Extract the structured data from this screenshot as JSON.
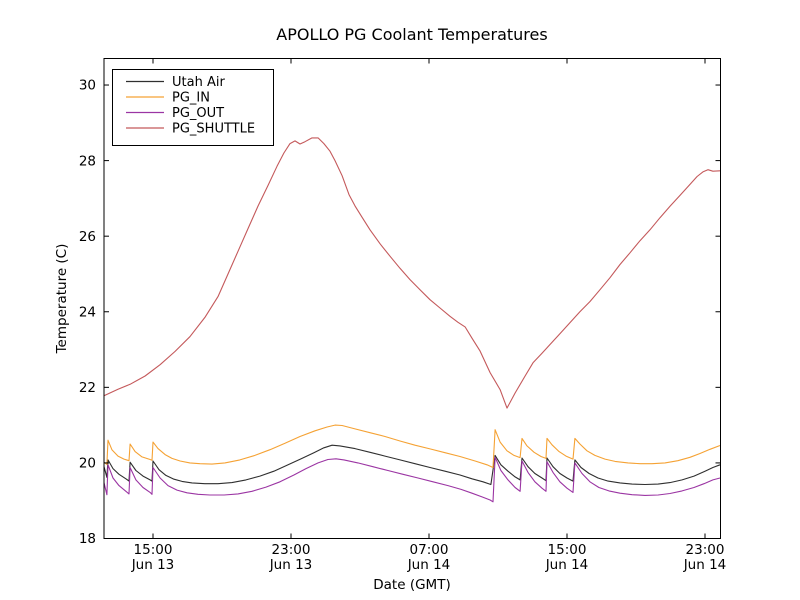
{
  "figure": {
    "title": "APOLLO PG Coolant Temperatures",
    "xlabel": "Date (GMT)",
    "ylabel": "Temperature (C)"
  },
  "chart_data": {
    "type": "line",
    "title": "APOLLO PG Coolant Temperatures",
    "xlabel": "Date (GMT)",
    "ylabel": "Temperature (C)",
    "x_unit": "hours since Jun 13 00:00 GMT",
    "xlim": [
      12.16,
      47.87
    ],
    "ylim": [
      18,
      30.7
    ],
    "grid": false,
    "legend_position": "upper left",
    "y_ticks": [
      {
        "value": 18,
        "label": "18"
      },
      {
        "value": 20,
        "label": "20"
      },
      {
        "value": 22,
        "label": "22"
      },
      {
        "value": 24,
        "label": "24"
      },
      {
        "value": 26,
        "label": "26"
      },
      {
        "value": 28,
        "label": "28"
      },
      {
        "value": 30,
        "label": "30"
      }
    ],
    "x_ticks": [
      {
        "t": 15,
        "time": "15:00",
        "date": "Jun 13"
      },
      {
        "t": 23,
        "time": "23:00",
        "date": "Jun 13"
      },
      {
        "t": 31,
        "time": "07:00",
        "date": "Jun 14"
      },
      {
        "t": 39,
        "time": "15:00",
        "date": "Jun 14"
      },
      {
        "t": 47,
        "time": "23:00",
        "date": "Jun 14"
      }
    ],
    "series": [
      {
        "name": "Utah Air",
        "color": "#2F2F2F",
        "points": [
          [
            12.16,
            19.9
          ],
          [
            12.33,
            19.62
          ],
          [
            12.39,
            20.08
          ],
          [
            12.68,
            19.85
          ],
          [
            13.03,
            19.7
          ],
          [
            13.43,
            19.58
          ],
          [
            13.61,
            19.52
          ],
          [
            13.67,
            20.02
          ],
          [
            14.01,
            19.8
          ],
          [
            14.42,
            19.65
          ],
          [
            14.83,
            19.55
          ],
          [
            14.94,
            19.52
          ],
          [
            15.0,
            20.05
          ],
          [
            15.35,
            19.82
          ],
          [
            15.75,
            19.67
          ],
          [
            16.22,
            19.57
          ],
          [
            16.68,
            19.51
          ],
          [
            17.26,
            19.47
          ],
          [
            18.01,
            19.45
          ],
          [
            18.77,
            19.45
          ],
          [
            19.58,
            19.48
          ],
          [
            20.39,
            19.55
          ],
          [
            21.2,
            19.65
          ],
          [
            22.01,
            19.78
          ],
          [
            22.83,
            19.95
          ],
          [
            23.64,
            20.12
          ],
          [
            24.33,
            20.27
          ],
          [
            24.91,
            20.4
          ],
          [
            25.38,
            20.47
          ],
          [
            25.84,
            20.45
          ],
          [
            26.71,
            20.38
          ],
          [
            27.58,
            20.28
          ],
          [
            28.45,
            20.18
          ],
          [
            29.32,
            20.08
          ],
          [
            30.19,
            19.98
          ],
          [
            31.06,
            19.88
          ],
          [
            31.93,
            19.78
          ],
          [
            32.8,
            19.68
          ],
          [
            33.49,
            19.58
          ],
          [
            34.13,
            19.5
          ],
          [
            34.59,
            19.43
          ],
          [
            34.83,
            20.2
          ],
          [
            35.17,
            19.95
          ],
          [
            35.58,
            19.78
          ],
          [
            35.99,
            19.63
          ],
          [
            36.28,
            19.55
          ],
          [
            36.39,
            20.13
          ],
          [
            36.74,
            19.9
          ],
          [
            37.14,
            19.72
          ],
          [
            37.55,
            19.6
          ],
          [
            37.78,
            19.53
          ],
          [
            37.84,
            20.13
          ],
          [
            38.19,
            19.9
          ],
          [
            38.59,
            19.72
          ],
          [
            39.0,
            19.6
          ],
          [
            39.35,
            19.52
          ],
          [
            39.46,
            20.08
          ],
          [
            39.81,
            19.88
          ],
          [
            40.28,
            19.72
          ],
          [
            40.8,
            19.6
          ],
          [
            41.38,
            19.52
          ],
          [
            42.07,
            19.47
          ],
          [
            42.77,
            19.44
          ],
          [
            43.52,
            19.43
          ],
          [
            44.28,
            19.44
          ],
          [
            44.97,
            19.48
          ],
          [
            45.67,
            19.55
          ],
          [
            46.36,
            19.65
          ],
          [
            47.0,
            19.78
          ],
          [
            47.46,
            19.88
          ],
          [
            47.87,
            19.95
          ]
        ]
      },
      {
        "name": "PG_IN",
        "color": "#F5A234",
        "points": [
          [
            12.16,
            20.02
          ],
          [
            12.33,
            19.96
          ],
          [
            12.39,
            20.6
          ],
          [
            12.62,
            20.35
          ],
          [
            12.97,
            20.18
          ],
          [
            13.32,
            20.1
          ],
          [
            13.61,
            20.06
          ],
          [
            13.67,
            20.5
          ],
          [
            13.96,
            20.3
          ],
          [
            14.36,
            20.16
          ],
          [
            14.83,
            20.09
          ],
          [
            14.94,
            20.07
          ],
          [
            15.0,
            20.55
          ],
          [
            15.29,
            20.38
          ],
          [
            15.7,
            20.22
          ],
          [
            16.1,
            20.12
          ],
          [
            16.57,
            20.05
          ],
          [
            17.14,
            20.0
          ],
          [
            17.72,
            19.98
          ],
          [
            18.42,
            19.97
          ],
          [
            19.17,
            20.0
          ],
          [
            20.04,
            20.08
          ],
          [
            20.91,
            20.2
          ],
          [
            21.78,
            20.35
          ],
          [
            22.65,
            20.52
          ],
          [
            23.52,
            20.7
          ],
          [
            24.39,
            20.85
          ],
          [
            25.09,
            20.95
          ],
          [
            25.55,
            21.0
          ],
          [
            25.96,
            20.99
          ],
          [
            26.71,
            20.9
          ],
          [
            27.58,
            20.8
          ],
          [
            28.45,
            20.7
          ],
          [
            29.32,
            20.58
          ],
          [
            30.19,
            20.47
          ],
          [
            31.06,
            20.37
          ],
          [
            31.93,
            20.27
          ],
          [
            32.8,
            20.17
          ],
          [
            33.67,
            20.05
          ],
          [
            34.36,
            19.95
          ],
          [
            34.71,
            19.88
          ],
          [
            34.83,
            20.88
          ],
          [
            35.12,
            20.55
          ],
          [
            35.52,
            20.32
          ],
          [
            35.93,
            20.2
          ],
          [
            36.28,
            20.14
          ],
          [
            36.39,
            20.65
          ],
          [
            36.68,
            20.45
          ],
          [
            37.09,
            20.28
          ],
          [
            37.49,
            20.17
          ],
          [
            37.78,
            20.12
          ],
          [
            37.84,
            20.65
          ],
          [
            38.13,
            20.48
          ],
          [
            38.54,
            20.3
          ],
          [
            38.94,
            20.18
          ],
          [
            39.35,
            20.1
          ],
          [
            39.46,
            20.65
          ],
          [
            39.75,
            20.5
          ],
          [
            40.16,
            20.32
          ],
          [
            40.62,
            20.2
          ],
          [
            41.2,
            20.1
          ],
          [
            41.78,
            20.04
          ],
          [
            42.54,
            20.0
          ],
          [
            43.23,
            19.98
          ],
          [
            43.93,
            19.98
          ],
          [
            44.68,
            20.0
          ],
          [
            45.43,
            20.06
          ],
          [
            46.13,
            20.15
          ],
          [
            46.71,
            20.25
          ],
          [
            47.29,
            20.36
          ],
          [
            47.87,
            20.46
          ]
        ]
      },
      {
        "name": "PG_OUT",
        "color": "#9B35A3",
        "points": [
          [
            12.16,
            19.48
          ],
          [
            12.33,
            19.16
          ],
          [
            12.39,
            19.95
          ],
          [
            12.68,
            19.6
          ],
          [
            13.03,
            19.4
          ],
          [
            13.43,
            19.25
          ],
          [
            13.61,
            19.18
          ],
          [
            13.67,
            19.88
          ],
          [
            14.01,
            19.55
          ],
          [
            14.42,
            19.35
          ],
          [
            14.83,
            19.22
          ],
          [
            14.94,
            19.17
          ],
          [
            15.0,
            19.88
          ],
          [
            15.41,
            19.6
          ],
          [
            15.87,
            19.4
          ],
          [
            16.39,
            19.28
          ],
          [
            16.97,
            19.21
          ],
          [
            17.61,
            19.17
          ],
          [
            18.3,
            19.15
          ],
          [
            19.12,
            19.15
          ],
          [
            19.93,
            19.18
          ],
          [
            20.74,
            19.25
          ],
          [
            21.55,
            19.36
          ],
          [
            22.36,
            19.5
          ],
          [
            23.17,
            19.68
          ],
          [
            23.87,
            19.85
          ],
          [
            24.57,
            20.0
          ],
          [
            25.14,
            20.09
          ],
          [
            25.61,
            20.11
          ],
          [
            26.07,
            20.08
          ],
          [
            26.88,
            20.0
          ],
          [
            27.75,
            19.9
          ],
          [
            28.62,
            19.8
          ],
          [
            29.49,
            19.7
          ],
          [
            30.36,
            19.6
          ],
          [
            31.23,
            19.5
          ],
          [
            32.1,
            19.4
          ],
          [
            32.86,
            19.3
          ],
          [
            33.49,
            19.2
          ],
          [
            34.07,
            19.1
          ],
          [
            34.54,
            19.02
          ],
          [
            34.71,
            18.97
          ],
          [
            34.83,
            20.15
          ],
          [
            35.17,
            19.8
          ],
          [
            35.58,
            19.55
          ],
          [
            35.99,
            19.35
          ],
          [
            36.28,
            19.25
          ],
          [
            36.39,
            20.05
          ],
          [
            36.74,
            19.75
          ],
          [
            37.14,
            19.5
          ],
          [
            37.55,
            19.33
          ],
          [
            37.78,
            19.25
          ],
          [
            37.84,
            20.03
          ],
          [
            38.19,
            19.75
          ],
          [
            38.59,
            19.5
          ],
          [
            39.0,
            19.33
          ],
          [
            39.35,
            19.22
          ],
          [
            39.46,
            20.0
          ],
          [
            39.87,
            19.72
          ],
          [
            40.33,
            19.5
          ],
          [
            40.85,
            19.35
          ],
          [
            41.43,
            19.26
          ],
          [
            42.07,
            19.2
          ],
          [
            42.77,
            19.16
          ],
          [
            43.52,
            19.14
          ],
          [
            44.28,
            19.15
          ],
          [
            44.97,
            19.19
          ],
          [
            45.67,
            19.26
          ],
          [
            46.36,
            19.35
          ],
          [
            46.94,
            19.45
          ],
          [
            47.46,
            19.55
          ],
          [
            47.87,
            19.6
          ]
        ]
      },
      {
        "name": "PG_SHUTTLE",
        "color": "#C4595B",
        "points": [
          [
            12.16,
            21.78
          ],
          [
            12.97,
            21.95
          ],
          [
            13.67,
            22.08
          ],
          [
            14.54,
            22.3
          ],
          [
            15.41,
            22.6
          ],
          [
            16.28,
            22.95
          ],
          [
            17.14,
            23.34
          ],
          [
            18.01,
            23.85
          ],
          [
            18.77,
            24.4
          ],
          [
            19.35,
            25.0
          ],
          [
            19.93,
            25.6
          ],
          [
            20.51,
            26.2
          ],
          [
            21.09,
            26.8
          ],
          [
            21.67,
            27.35
          ],
          [
            22.19,
            27.85
          ],
          [
            22.59,
            28.2
          ],
          [
            22.94,
            28.45
          ],
          [
            23.23,
            28.52
          ],
          [
            23.52,
            28.44
          ],
          [
            23.81,
            28.5
          ],
          [
            24.22,
            28.6
          ],
          [
            24.57,
            28.6
          ],
          [
            24.91,
            28.45
          ],
          [
            25.26,
            28.25
          ],
          [
            25.55,
            28.0
          ],
          [
            25.96,
            27.6
          ],
          [
            26.36,
            27.1
          ],
          [
            26.71,
            26.8
          ],
          [
            27.12,
            26.5
          ],
          [
            27.58,
            26.17
          ],
          [
            28.16,
            25.8
          ],
          [
            28.74,
            25.47
          ],
          [
            29.32,
            25.15
          ],
          [
            29.9,
            24.85
          ],
          [
            30.48,
            24.58
          ],
          [
            31.06,
            24.32
          ],
          [
            31.64,
            24.1
          ],
          [
            32.22,
            23.88
          ],
          [
            32.68,
            23.72
          ],
          [
            33.09,
            23.6
          ],
          [
            33.49,
            23.3
          ],
          [
            33.96,
            22.96
          ],
          [
            34.54,
            22.39
          ],
          [
            35.12,
            21.94
          ],
          [
            35.52,
            21.45
          ],
          [
            35.99,
            21.85
          ],
          [
            36.57,
            22.3
          ],
          [
            37.03,
            22.65
          ],
          [
            37.55,
            22.9
          ],
          [
            38.01,
            23.13
          ],
          [
            38.59,
            23.42
          ],
          [
            39.17,
            23.71
          ],
          [
            39.75,
            24.0
          ],
          [
            40.33,
            24.27
          ],
          [
            40.91,
            24.58
          ],
          [
            41.49,
            24.9
          ],
          [
            42.07,
            25.25
          ],
          [
            42.65,
            25.56
          ],
          [
            43.23,
            25.88
          ],
          [
            43.81,
            26.17
          ],
          [
            44.39,
            26.49
          ],
          [
            44.97,
            26.79
          ],
          [
            45.55,
            27.08
          ],
          [
            46.13,
            27.37
          ],
          [
            46.54,
            27.58
          ],
          [
            46.88,
            27.7
          ],
          [
            47.17,
            27.76
          ],
          [
            47.46,
            27.72
          ],
          [
            47.87,
            27.73
          ]
        ]
      }
    ]
  }
}
